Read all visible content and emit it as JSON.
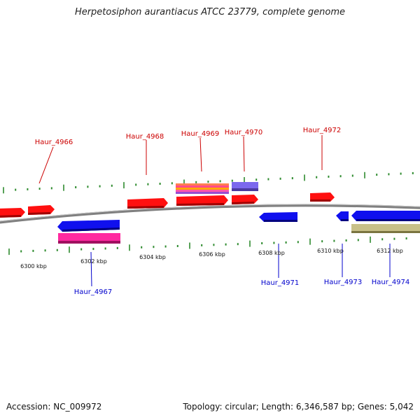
{
  "title": "Herpetosiphon aurantiacus ATCC 23779, complete genome",
  "footer": {
    "accession": "Accession: NC_009972",
    "topology": "Topology: circular; Length: 6,346,587 bp; Genes: 5,042"
  },
  "scale": {
    "tick_labels": [
      "6300 kbp",
      "6302 kbp",
      "6304 kbp",
      "6306 kbp",
      "6308 kbp",
      "6310 kbp",
      "6312 kbp"
    ]
  },
  "gene_labels": {
    "top": [
      "Haur_4966",
      "Haur_4968",
      "Haur_4969",
      "Haur_4970",
      "Haur_4972"
    ],
    "bottom": [
      "Haur_4967",
      "Haur_4971",
      "Haur_4973",
      "Haur_4974"
    ]
  },
  "colors": {
    "forward_label": "#cc0000",
    "reverse_label": "#0000cc",
    "forward_gene": "#ff1010",
    "reverse_gene": "#1010ee",
    "tick": "#2e8b2e",
    "backbone": "#808080"
  }
}
